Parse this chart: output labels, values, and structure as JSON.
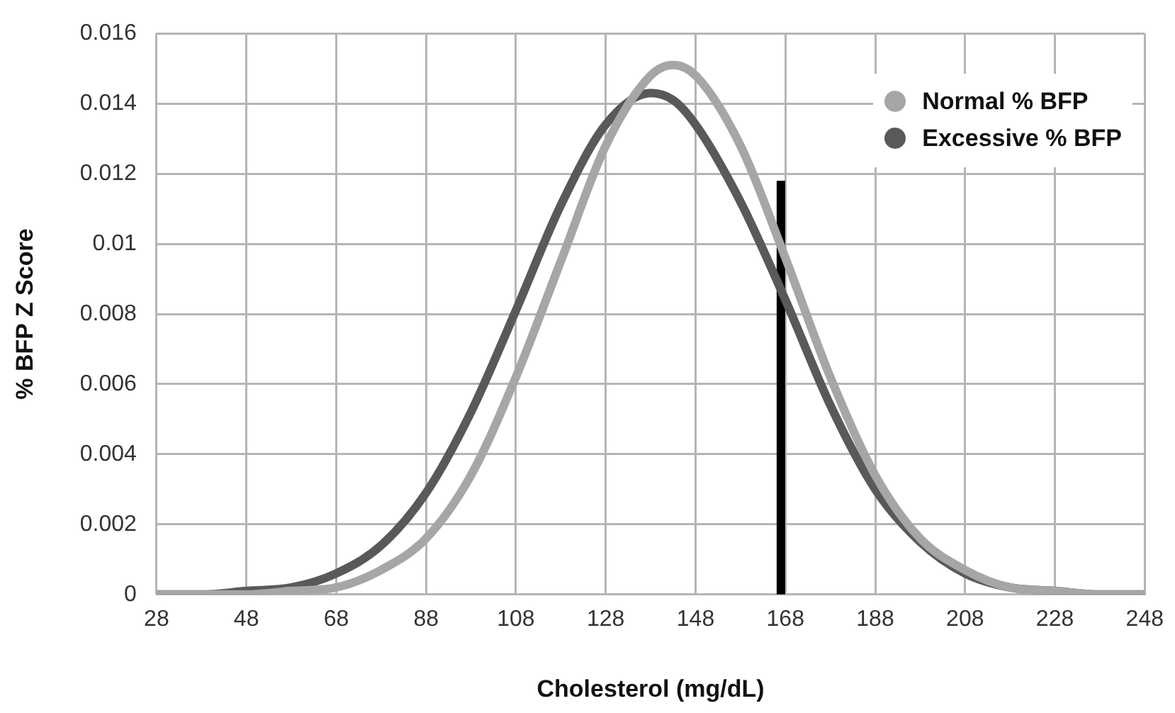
{
  "chart_data": {
    "type": "line",
    "xlabel": "Cholesterol (mg/dL)",
    "ylabel": "% BFP Z Score",
    "x": [
      28,
      38,
      48,
      58,
      68,
      78,
      88,
      98,
      108,
      118,
      128,
      138,
      143,
      148,
      158,
      168,
      178,
      188,
      198,
      208,
      218,
      228,
      238,
      248
    ],
    "series": [
      {
        "name": "Normal % BFP",
        "color": "#a6a6a6",
        "values": [
          0,
          0,
          0,
          0.0001,
          0.0002,
          0.0007,
          0.0016,
          0.0034,
          0.0062,
          0.0095,
          0.0128,
          0.0148,
          0.0151,
          0.0148,
          0.0128,
          0.0096,
          0.0062,
          0.0034,
          0.0016,
          0.0007,
          0.0002,
          0.0001,
          0,
          0
        ]
      },
      {
        "name": "Excessive % BFP",
        "color": "#595959",
        "values": [
          0,
          0,
          0.0001,
          0.0002,
          0.0006,
          0.0014,
          0.0029,
          0.0052,
          0.0081,
          0.0111,
          0.0134,
          0.0143,
          0.0141,
          0.0134,
          0.0112,
          0.0084,
          0.0054,
          0.003,
          0.0015,
          0.0006,
          0.0002,
          0.0001,
          0,
          0
        ]
      },
      {
        "color": "#000000",
        "x": [
          167,
          167
        ],
        "values": [
          0,
          0.0118
        ]
      }
    ],
    "xlim": [
      28,
      248
    ],
    "xticks": [
      28,
      48,
      68,
      88,
      108,
      128,
      148,
      168,
      188,
      208,
      228,
      248
    ],
    "ylim": [
      0,
      0.016
    ],
    "yticks": [
      0,
      0.002,
      0.004,
      0.006,
      0.008,
      0.01,
      0.012,
      0.014,
      0.016
    ],
    "grid": true,
    "legend": "top right",
    "marker": "none",
    "line_style": "solid"
  }
}
